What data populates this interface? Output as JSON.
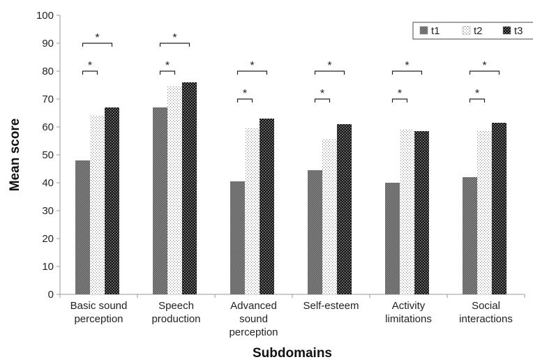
{
  "chart_data": {
    "type": "bar",
    "title": "",
    "xlabel": "Subdomains",
    "ylabel": "Mean score",
    "ylim": [
      0,
      100
    ],
    "yticks": [
      0,
      10,
      20,
      30,
      40,
      50,
      60,
      70,
      80,
      90,
      100
    ],
    "grid": false,
    "legend_position": "top-right",
    "categories": [
      [
        "Basic sound",
        "perception"
      ],
      [
        "Speech",
        "production"
      ],
      [
        "Advanced",
        "sound",
        "perception"
      ],
      [
        "Self-esteem"
      ],
      [
        "Activity",
        "limitations"
      ],
      [
        "Social",
        "interactions"
      ]
    ],
    "series": [
      {
        "name": "t1",
        "values": [
          48,
          67,
          40.5,
          44.5,
          40,
          42
        ],
        "pattern": "dense-dots",
        "color": "#777777"
      },
      {
        "name": "t2",
        "values": [
          64,
          74.5,
          59.5,
          55.5,
          59,
          58.5
        ],
        "pattern": "sparse-dots",
        "color": "#cfcfcf"
      },
      {
        "name": "t3",
        "values": [
          67,
          76,
          63,
          61,
          58.5,
          61.5
        ],
        "pattern": "checker",
        "color": "#2a2a2a"
      }
    ],
    "significance": [
      {
        "category": 0,
        "from": "t1",
        "to": "t2",
        "y": 80,
        "label": "*"
      },
      {
        "category": 0,
        "from": "t1",
        "to": "t3",
        "y": 90,
        "label": "*"
      },
      {
        "category": 1,
        "from": "t1",
        "to": "t2",
        "y": 80,
        "label": "*"
      },
      {
        "category": 1,
        "from": "t1",
        "to": "t3",
        "y": 90,
        "label": "*"
      },
      {
        "category": 2,
        "from": "t1",
        "to": "t2",
        "y": 70,
        "label": "*"
      },
      {
        "category": 2,
        "from": "t1",
        "to": "t3",
        "y": 80,
        "label": "*"
      },
      {
        "category": 3,
        "from": "t1",
        "to": "t2",
        "y": 70,
        "label": "*"
      },
      {
        "category": 3,
        "from": "t1",
        "to": "t3",
        "y": 80,
        "label": "*"
      },
      {
        "category": 4,
        "from": "t1",
        "to": "t2",
        "y": 70,
        "label": "*"
      },
      {
        "category": 4,
        "from": "t1",
        "to": "t3",
        "y": 80,
        "label": "*"
      },
      {
        "category": 5,
        "from": "t1",
        "to": "t2",
        "y": 70,
        "label": "*"
      },
      {
        "category": 5,
        "from": "t1",
        "to": "t3",
        "y": 80,
        "label": "*"
      }
    ]
  }
}
